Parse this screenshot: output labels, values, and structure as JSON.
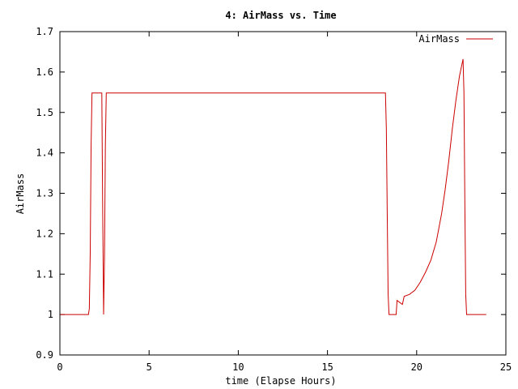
{
  "chart_data": {
    "type": "line",
    "title": "4: AirMass vs. Time",
    "xlabel": "time (Elapse Hours)",
    "ylabel": "AirMass",
    "xlim": [
      0,
      25
    ],
    "ylim": [
      0.9,
      1.7
    ],
    "xticks": [
      0,
      5,
      10,
      15,
      20,
      25
    ],
    "yticks": [
      0.9,
      1,
      1.1,
      1.2,
      1.3,
      1.4,
      1.5,
      1.6,
      1.7
    ],
    "grid": false,
    "legend": "top-right",
    "series": [
      {
        "name": "AirMass",
        "color": "#cc0000",
        "x": [
          0,
          1.6,
          1.65,
          1.7,
          1.75,
          1.8,
          2.0,
          2.2,
          2.35,
          2.4,
          2.45,
          2.5,
          2.55,
          2.6,
          2.65,
          2.7,
          2.8,
          5,
          10,
          15,
          18.2,
          18.25,
          18.3,
          18.35,
          18.4,
          18.45,
          18.8,
          18.85,
          18.9,
          19.2,
          19.3,
          19.6,
          19.9,
          20.2,
          20.5,
          20.8,
          21.1,
          21.4,
          21.6,
          21.8,
          22.0,
          22.2,
          22.4,
          22.6,
          22.65,
          22.7,
          22.75,
          22.8,
          22.9,
          23.1,
          23.9
        ],
        "y": [
          1.0,
          1.0,
          1.015,
          1.15,
          1.42,
          1.548,
          1.548,
          1.548,
          1.548,
          1.25,
          1.0,
          1.14,
          1.42,
          1.548,
          1.548,
          1.548,
          1.548,
          1.548,
          1.548,
          1.548,
          1.548,
          1.548,
          1.46,
          1.25,
          1.05,
          1.0,
          1.0,
          1.0,
          1.035,
          1.025,
          1.045,
          1.05,
          1.06,
          1.08,
          1.105,
          1.135,
          1.18,
          1.25,
          1.31,
          1.38,
          1.46,
          1.53,
          1.59,
          1.632,
          1.55,
          1.28,
          1.05,
          1.0,
          1.0,
          1.0,
          1.0
        ]
      }
    ]
  }
}
